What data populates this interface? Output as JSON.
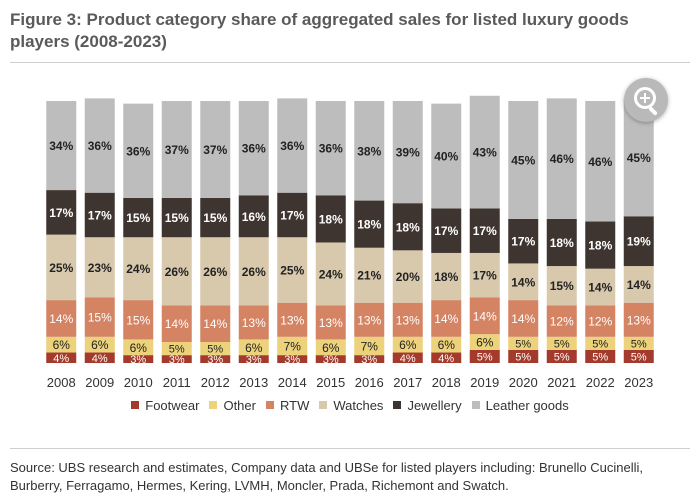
{
  "title": "Figure 3: Product category share of aggregated sales for listed luxury goods players (2008-2023)",
  "source": "Source: UBS research and estimates, Company data and UBSe for listed players including: Brunello Cucinelli, Burberry, Ferragamo, Hermes, Kering, LVMH, Moncler, Prada, Richemont and Swatch.",
  "zoom_icon": "zoom-in-icon",
  "chart_data": {
    "type": "bar",
    "stacked": true,
    "unit": "%",
    "categories": [
      "2008",
      "2009",
      "2010",
      "2011",
      "2012",
      "2013",
      "2014",
      "2015",
      "2016",
      "2017",
      "2018",
      "2019",
      "2020",
      "2021",
      "2022",
      "2023"
    ],
    "series": [
      {
        "name": "Footwear",
        "color": "#a33a2b",
        "values": [
          4,
          4,
          3,
          3,
          3,
          3,
          3,
          3,
          3,
          4,
          4,
          5,
          5,
          5,
          5,
          5
        ]
      },
      {
        "name": "Other",
        "color": "#ecd27a",
        "values": [
          6,
          6,
          6,
          5,
          5,
          6,
          7,
          6,
          7,
          6,
          6,
          6,
          5,
          5,
          5,
          5
        ]
      },
      {
        "name": "RTW",
        "color": "#d48363",
        "values": [
          14,
          15,
          15,
          14,
          14,
          13,
          13,
          13,
          13,
          13,
          14,
          14,
          14,
          12,
          12,
          13
        ]
      },
      {
        "name": "Watches",
        "color": "#d8c8ac",
        "values": [
          25,
          23,
          24,
          26,
          26,
          26,
          25,
          24,
          21,
          20,
          18,
          17,
          14,
          15,
          14,
          14
        ]
      },
      {
        "name": "Jewellery",
        "color": "#3f3530",
        "values": [
          17,
          17,
          15,
          15,
          15,
          16,
          17,
          18,
          18,
          18,
          17,
          17,
          17,
          18,
          18,
          19
        ]
      },
      {
        "name": "Leather goods",
        "color": "#bdbdbd",
        "values": [
          34,
          36,
          36,
          37,
          37,
          36,
          36,
          36,
          38,
          39,
          40,
          43,
          45,
          46,
          46,
          45
        ]
      }
    ],
    "ylim": [
      0,
      100
    ],
    "legend_position": "bottom"
  }
}
